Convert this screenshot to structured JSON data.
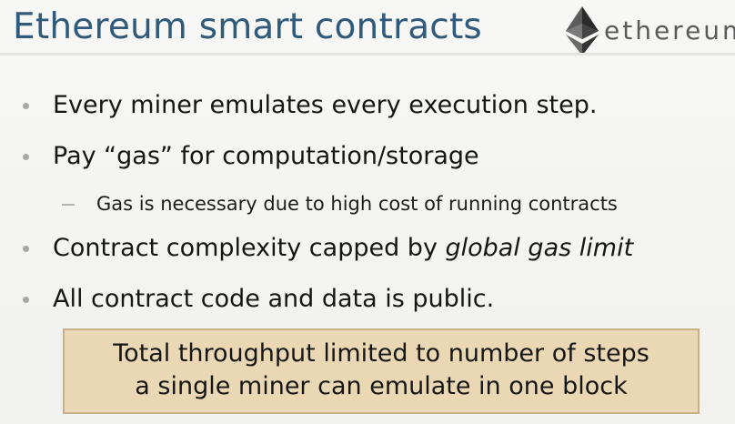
{
  "slide": {
    "title": "Ethereum smart contracts",
    "logo": {
      "icon": "ethereum-diamond-icon",
      "text": "ethereum"
    },
    "bullets": [
      {
        "text": "Every miner emulates every execution step."
      },
      {
        "text": "Pay “gas” for computation/storage"
      },
      {
        "sub_text": "Gas is necessary due to high cost of running contracts"
      },
      {
        "text_prefix": "Contract complexity capped by ",
        "text_emphasis": "global gas limit"
      },
      {
        "text": "All contract code and data is public."
      }
    ],
    "callout": {
      "line1": "Total throughput limited to number of steps",
      "line2": "a single miner can emulate in one block"
    },
    "colors": {
      "title": "#2f5a7c",
      "callout_background": "#ead7b4",
      "callout_border": "#c9b087",
      "bullet_dot": "#a7a7a7"
    }
  }
}
